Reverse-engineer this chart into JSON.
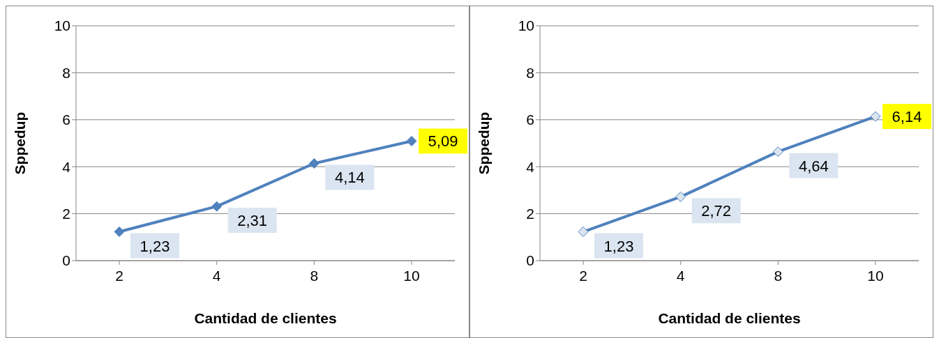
{
  "chart_data": [
    {
      "type": "line",
      "categories": [
        "2",
        "4",
        "8",
        "10"
      ],
      "xlabel": "Cantidad de clientes",
      "ylabel": "Sppedup",
      "ylim": [
        0,
        10
      ],
      "yticks": [
        0,
        2,
        4,
        6,
        8,
        10
      ],
      "grid": "y",
      "marker": "diamond",
      "line_style": "solid",
      "series": [
        {
          "color": "#4f81bd",
          "values": [
            1.23,
            2.31,
            4.14,
            5.09
          ],
          "value_labels": [
            "1,23",
            "2,31",
            "4,14",
            "5,09"
          ]
        }
      ]
    },
    {
      "type": "line",
      "categories": [
        "2",
        "4",
        "8",
        "10"
      ],
      "xlabel": "Cantidad de clientes",
      "ylabel": "Sppedup",
      "ylim": [
        0,
        10
      ],
      "yticks": [
        0,
        2,
        4,
        6,
        8,
        10
      ],
      "grid": "y",
      "marker": "diamond",
      "line_style": "solid",
      "series": [
        {
          "color": "#4f81bd",
          "values": [
            1.23,
            2.72,
            4.64,
            6.14
          ],
          "value_labels": [
            "1,23",
            "2,72",
            "4,64",
            "6,14"
          ]
        }
      ]
    }
  ]
}
